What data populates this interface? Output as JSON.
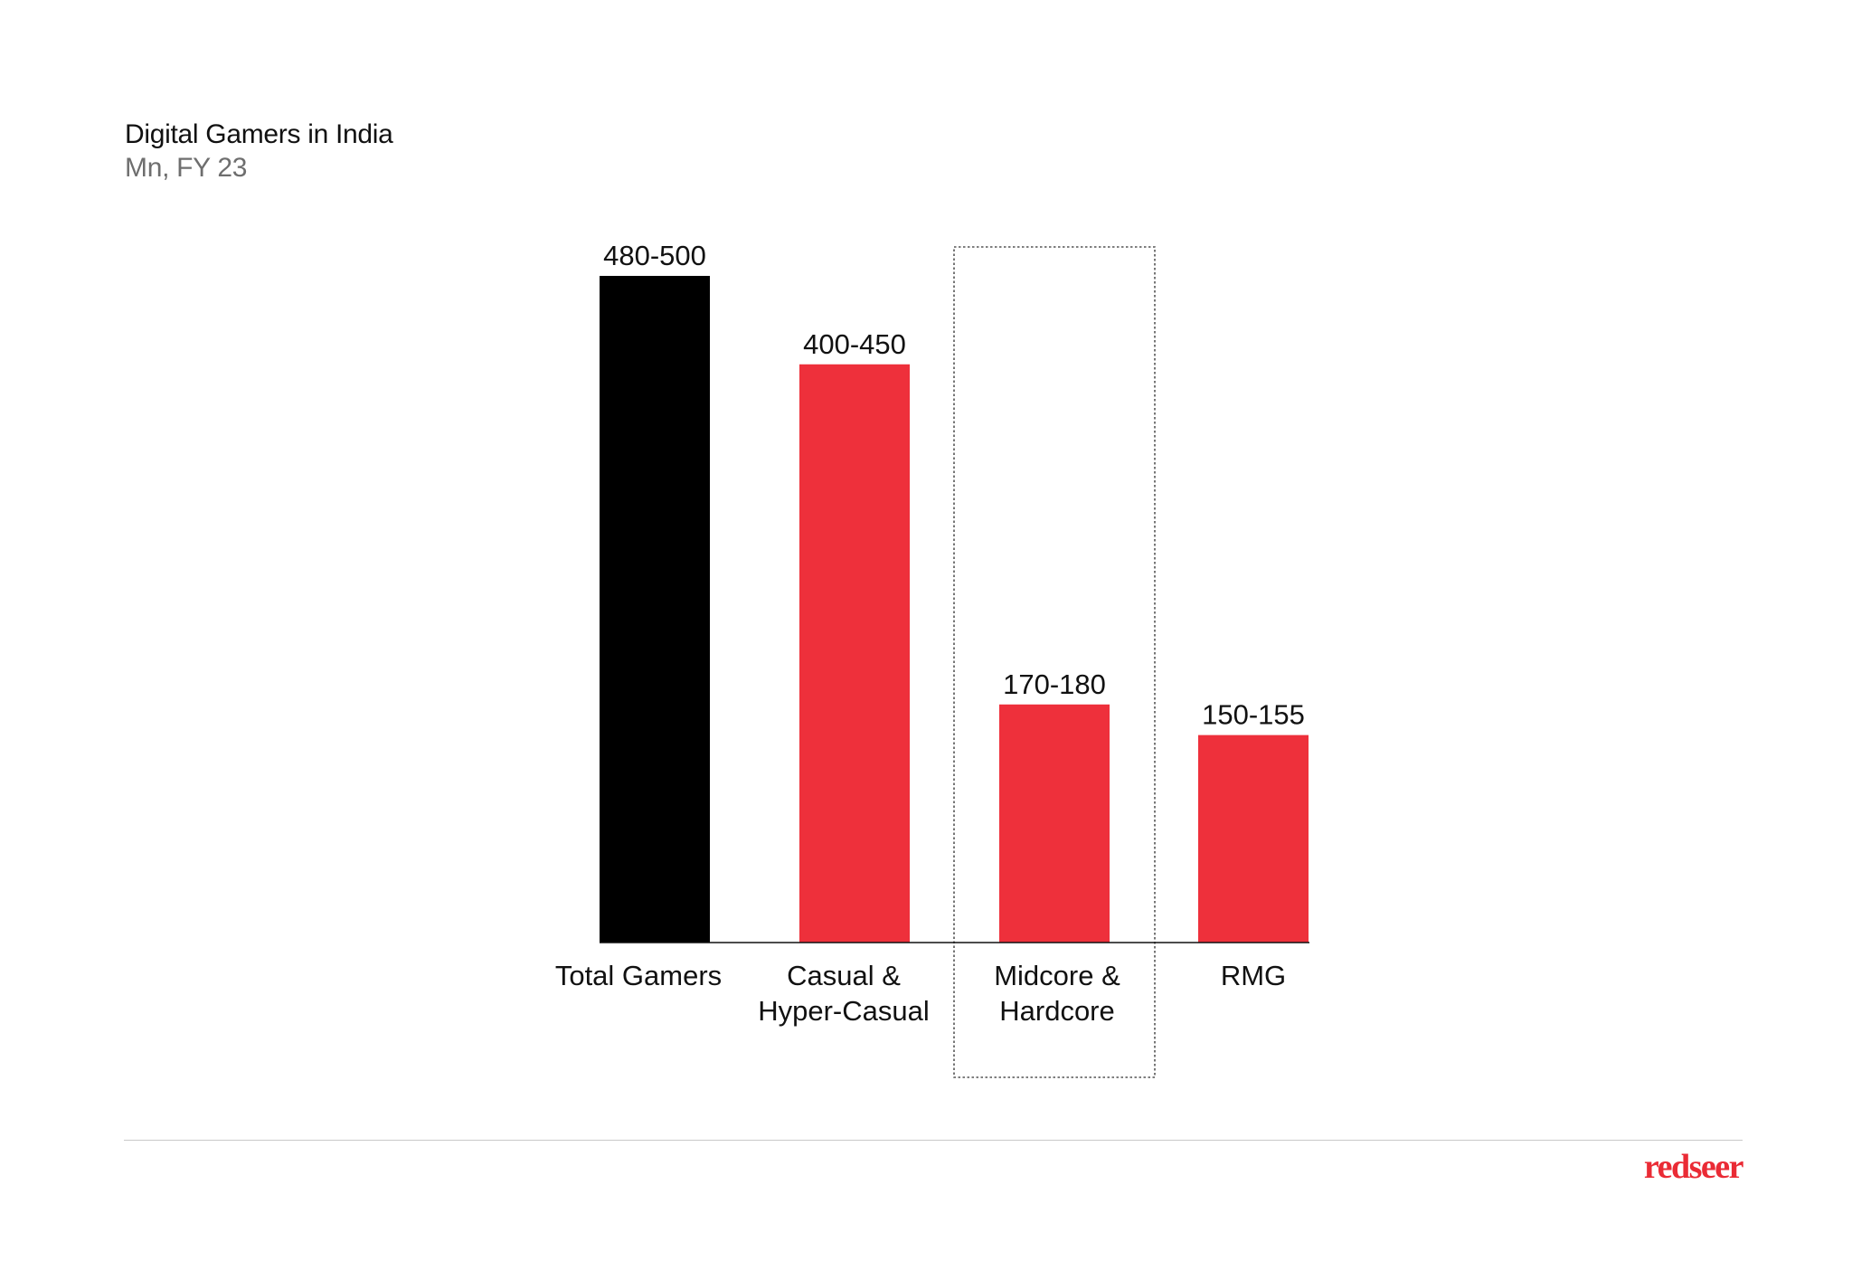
{
  "chart_data": {
    "type": "bar",
    "title": "Digital Gamers in India",
    "subtitle": "Mn, FY 23",
    "xlabel": "",
    "ylabel": "",
    "unit": "Mn",
    "categories": [
      [
        "Total Gamers"
      ],
      [
        "Casual &",
        "Hyper-Casual"
      ],
      [
        "Midcore &",
        "Hardcore"
      ],
      [
        "RMG"
      ]
    ],
    "values": [
      490,
      425,
      175,
      152.5
    ],
    "ranges": [
      [
        480,
        500
      ],
      [
        400,
        450
      ],
      [
        170,
        180
      ],
      [
        150,
        155
      ]
    ],
    "data_labels": [
      "480-500",
      "400-450",
      "170-180",
      "150-155"
    ],
    "bar_colors": [
      "#000000",
      "#ee303b",
      "#ee303b",
      "#ee303b"
    ],
    "highlighted_category_index": 2,
    "ylim": [
      0,
      500
    ],
    "grid": false,
    "legend": "none"
  },
  "brand": {
    "logo_text": "redseer",
    "color": "#ea2b35"
  }
}
